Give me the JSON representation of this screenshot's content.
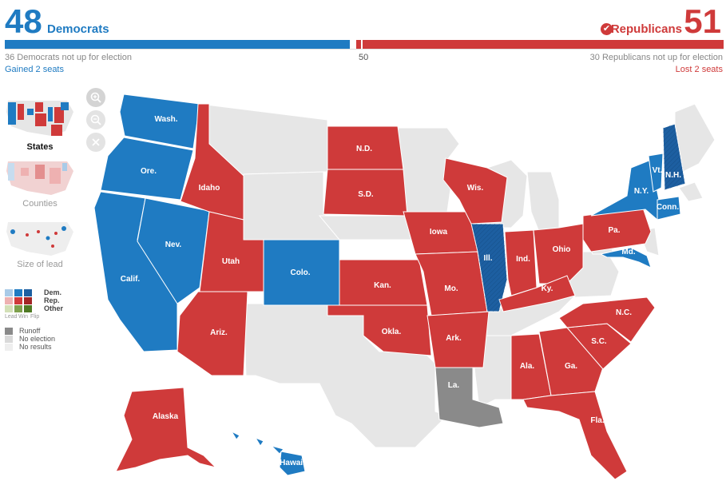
{
  "header": {
    "dem_count": "48",
    "dem_label": "Democrats",
    "rep_count": "51",
    "rep_label": "Republicans",
    "dem_not_up": "36 Democrats not up for election",
    "majority_marker": "50",
    "rep_not_up": "30 Republicans not up for election",
    "dem_change": "Gained 2 seats",
    "rep_change": "Lost 2 seats"
  },
  "seat_share": {
    "dem_seats": 48,
    "rep_seats": 51,
    "majority": 50
  },
  "views": [
    {
      "label": "States",
      "active": true
    },
    {
      "label": "Counties",
      "active": false
    },
    {
      "label": "Size of lead",
      "active": false
    }
  ],
  "zoom_controls": [
    "zoom-in-icon",
    "zoom-out-icon",
    "reset-icon"
  ],
  "legend": {
    "parties": [
      "Dem.",
      "Rep.",
      "Other"
    ],
    "columns": [
      "Lead",
      "Win",
      "Flip"
    ],
    "extras": [
      "Runoff",
      "No election",
      "No results"
    ]
  },
  "colors": {
    "dem": "#1f7bc2",
    "dem_flip": "#1d5fa1",
    "rep": "#cf3a3a",
    "runoff": "#8a8a8a",
    "no_election": "#e6e6e6",
    "lead_dem": "#a9cbe8",
    "lead_rep": "#eeb1b1",
    "other": "#7fa14d"
  },
  "states": [
    {
      "label": "Wash.",
      "result": "dem"
    },
    {
      "label": "Ore.",
      "result": "dem"
    },
    {
      "label": "Calif.",
      "result": "dem"
    },
    {
      "label": "Nev.",
      "result": "dem"
    },
    {
      "label": "Idaho",
      "result": "rep"
    },
    {
      "label": "Utah",
      "result": "rep"
    },
    {
      "label": "Ariz.",
      "result": "rep"
    },
    {
      "label": "Colo.",
      "result": "dem"
    },
    {
      "label": "N.D.",
      "result": "rep"
    },
    {
      "label": "S.D.",
      "result": "rep"
    },
    {
      "label": "Kan.",
      "result": "rep"
    },
    {
      "label": "Okla.",
      "result": "rep"
    },
    {
      "label": "Iowa",
      "result": "rep"
    },
    {
      "label": "Mo.",
      "result": "rep"
    },
    {
      "label": "Ark.",
      "result": "rep"
    },
    {
      "label": "La.",
      "result": "runoff"
    },
    {
      "label": "Wis.",
      "result": "rep"
    },
    {
      "label": "Ill.",
      "result": "dem_flip"
    },
    {
      "label": "Ind.",
      "result": "rep"
    },
    {
      "label": "Ohio",
      "result": "rep"
    },
    {
      "label": "Ky.",
      "result": "rep"
    },
    {
      "label": "Ala.",
      "result": "rep"
    },
    {
      "label": "Ga.",
      "result": "rep"
    },
    {
      "label": "S.C.",
      "result": "rep"
    },
    {
      "label": "N.C.",
      "result": "rep"
    },
    {
      "label": "Fla.",
      "result": "rep"
    },
    {
      "label": "Pa.",
      "result": "rep"
    },
    {
      "label": "N.Y.",
      "result": "dem"
    },
    {
      "label": "Vt.",
      "result": "dem"
    },
    {
      "label": "N.H.",
      "result": "dem_flip"
    },
    {
      "label": "Conn.",
      "result": "dem"
    },
    {
      "label": "Md.",
      "result": "dem"
    },
    {
      "label": "Alaska",
      "result": "rep"
    },
    {
      "label": "Hawaii",
      "result": "dem"
    }
  ]
}
